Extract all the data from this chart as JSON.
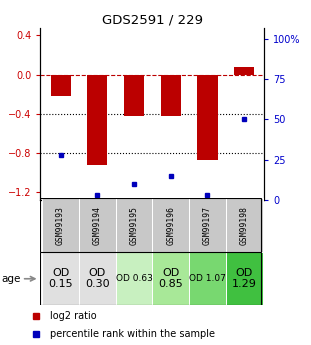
{
  "title": "GDS2591 / 229",
  "samples": [
    "GSM99193",
    "GSM99194",
    "GSM99195",
    "GSM99196",
    "GSM99197",
    "GSM99198"
  ],
  "log2_ratio": [
    -0.22,
    -0.92,
    -0.42,
    -0.42,
    -0.87,
    0.08
  ],
  "percentile_rank": [
    28,
    3,
    10,
    15,
    3,
    50
  ],
  "ylim_left": [
    -1.28,
    0.48
  ],
  "ylim_right": [
    0,
    107
  ],
  "left_ticks": [
    0.4,
    0.0,
    -0.4,
    -0.8,
    -1.2
  ],
  "right_ticks": [
    100,
    75,
    50,
    25,
    0
  ],
  "age_labels": [
    "OD\n0.15",
    "OD\n0.30",
    "OD 0.63",
    "OD\n0.85",
    "OD 1.07",
    "OD\n1.29"
  ],
  "age_bg_colors": [
    "#e0e0e0",
    "#e0e0e0",
    "#c8f0c0",
    "#a8e898",
    "#78d870",
    "#40c040"
  ],
  "age_font_sizes": [
    8,
    8,
    6.5,
    8,
    6.5,
    8
  ],
  "bar_color": "#bb0000",
  "dot_color": "#0000bb",
  "dotted_lines": [
    -0.4,
    -0.8
  ],
  "header_bg": "#c8c8c8",
  "legend_bar_label": "log2 ratio",
  "legend_dot_label": "percentile rank within the sample"
}
